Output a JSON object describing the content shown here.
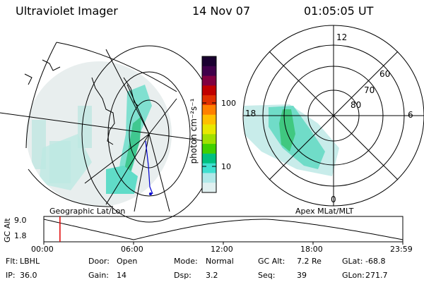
{
  "header": {
    "instrument": "Ultraviolet Imager",
    "date": "14 Nov 07",
    "time": "01:05:05 UT"
  },
  "left_panel": {
    "caption": "Geographic Lat/Lon"
  },
  "right_panel": {
    "caption": "Apex MLat/MLT",
    "mlt_labels": {
      "top": "12",
      "left": "18",
      "right": "6",
      "bottom": "0"
    },
    "lat_labels": [
      "60",
      "70",
      "80"
    ]
  },
  "colorbar": {
    "unit_label": "photon cm⁻²s⁻¹",
    "tick_labels": [
      "100",
      "10"
    ],
    "colors": [
      "#1a0030",
      "#40004a",
      "#800040",
      "#c00000",
      "#e03000",
      "#ff8000",
      "#ffc000",
      "#e8e800",
      "#a0e000",
      "#40d000",
      "#00c080",
      "#40e0d0",
      "#b0e8e8",
      "#e0f0f0"
    ]
  },
  "timeline": {
    "y_label": "GC Alt",
    "y_ticks": [
      "9.0",
      "1.8"
    ],
    "x_ticks": [
      "00:00",
      "06:00",
      "12:00",
      "18:00",
      "23:59"
    ],
    "marker_fraction": 0.045
  },
  "info_rows": [
    [
      {
        "label": "Flt:",
        "value": "LBHL"
      },
      {
        "label": "Door:",
        "value": "Open"
      },
      {
        "label": "Mode:",
        "value": "Normal"
      },
      {
        "label": "GC Alt:",
        "value": "7.2 Re"
      },
      {
        "label": "GLat:",
        "value": "-68.8"
      }
    ],
    [
      {
        "label": "IP:",
        "value": "36.0"
      },
      {
        "label": "Gain:",
        "value": "14"
      },
      {
        "label": "Dsp:",
        "value": "3.2"
      },
      {
        "label": "Seq:",
        "value": "39"
      },
      {
        "label": "GLon:",
        "value": "271.7"
      }
    ]
  ]
}
